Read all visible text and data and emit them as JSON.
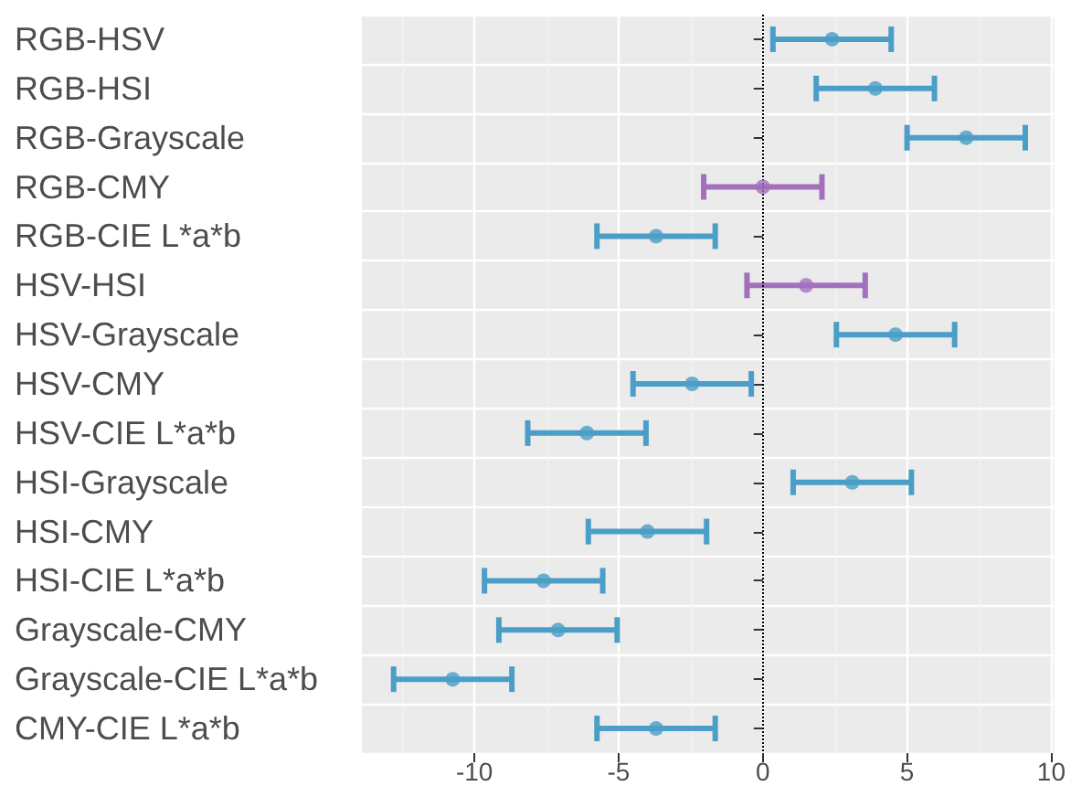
{
  "chart_data": {
    "type": "scatter",
    "orientation": "horizontal",
    "categories": [
      "RGB-HSV",
      "RGB-HSI",
      "RGB-Grayscale",
      "RGB-CMY",
      "RGB-CIE L*a*b",
      "HSV-HSI",
      "HSV-Grayscale",
      "HSV-CMY",
      "HSV-CIE L*a*b",
      "HSI-Grayscale",
      "HSI-CMY",
      "HSI-CIE L*a*b",
      "Grayscale-CMY",
      "Grayscale-CIE L*a*b",
      "CMY-CIE L*a*b"
    ],
    "values": [
      2.4,
      3.9,
      7.05,
      0,
      -3.7,
      1.5,
      4.6,
      -2.45,
      -6.1,
      3.1,
      -4,
      -7.6,
      -7.1,
      -10.75,
      -3.7
    ],
    "errors": [
      2.05,
      2.05,
      2.05,
      2.05,
      2.05,
      2.05,
      2.05,
      2.05,
      2.05,
      2.05,
      2.05,
      2.05,
      2.05,
      2.05,
      2.05
    ],
    "colors": [
      "#4a9ec7",
      "#4a9ec7",
      "#4a9ec7",
      "#a370bd",
      "#4a9ec7",
      "#a370bd",
      "#4a9ec7",
      "#4a9ec7",
      "#4a9ec7",
      "#4a9ec7",
      "#4a9ec7",
      "#4a9ec7",
      "#4a9ec7",
      "#4a9ec7",
      "#4a9ec7"
    ],
    "xlim": [
      -13.9,
      10.1
    ],
    "xticks": [
      -10,
      -5,
      0,
      5,
      10
    ],
    "ref_lines": [
      {
        "axis": "x",
        "value": 0,
        "color": "#000000",
        "line_style": "dotted"
      }
    ],
    "grid": true,
    "marker": "circle"
  }
}
